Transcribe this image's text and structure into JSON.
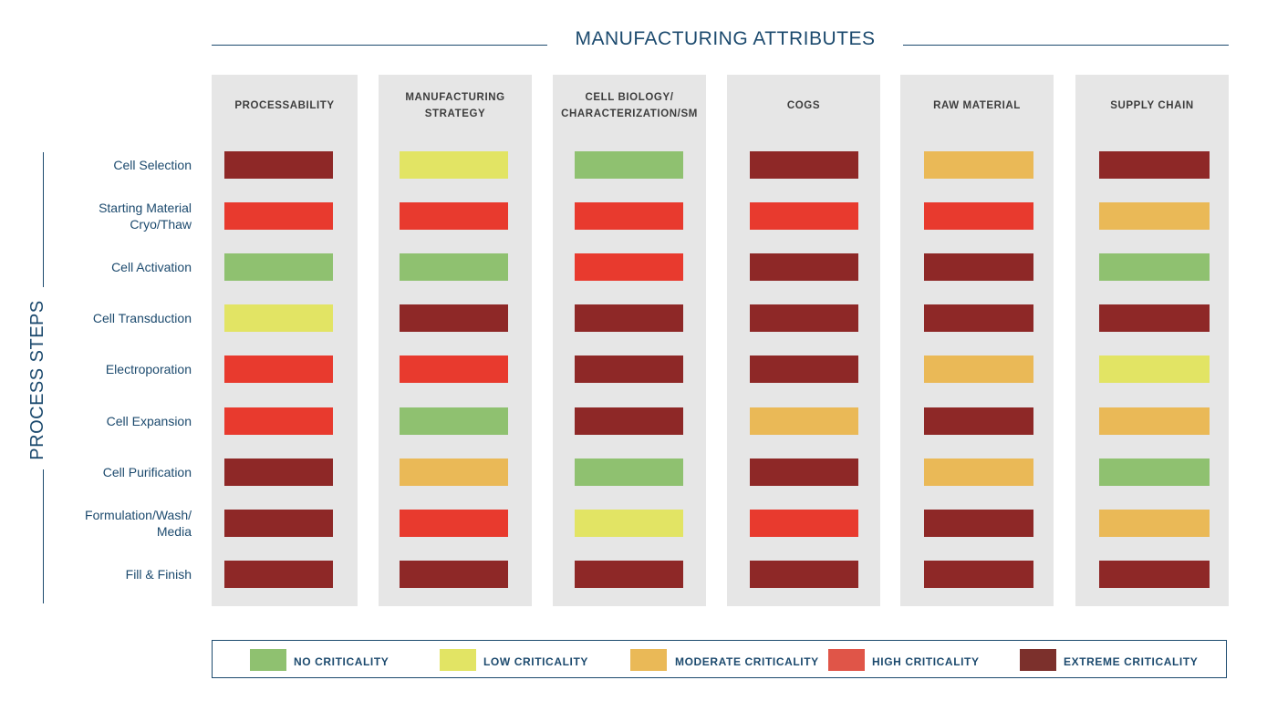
{
  "title": "MANUFACTURING ATTRIBUTES",
  "side_title": "PROCESS STEPS",
  "colors": {
    "no": "#8fc170",
    "low": "#e2e464",
    "moderate": "#eab957",
    "high": "#e83a2e",
    "extreme": "#8e2827",
    "legend_extreme": "#7c302c",
    "legend_high": "#e05548",
    "panel": "#e6e6e6",
    "text": "#1c4a6e"
  },
  "legend": [
    {
      "key": "no",
      "label": "NO CRITICALITY"
    },
    {
      "key": "low",
      "label": "LOW CRITICALITY"
    },
    {
      "key": "moderate",
      "label": "MODERATE CRITICALITY"
    },
    {
      "key": "high",
      "label": "HIGH CRITICALITY"
    },
    {
      "key": "extreme",
      "label": "EXTREME CRITICALITY"
    }
  ],
  "chart_data": {
    "type": "heatmap",
    "title": "MANUFACTURING ATTRIBUTES",
    "ylabel": "PROCESS STEPS",
    "columns": [
      "PROCESSABILITY",
      "MANUFACTURING\nSTRATEGY",
      "CELL BIOLOGY/\nCHARACTERIZATION/SM",
      "COGS",
      "RAW MATERIAL",
      "SUPPLY CHAIN"
    ],
    "rows": [
      "Cell Selection",
      "Starting Material\nCryo/Thaw",
      "Cell Activation",
      "Cell Transduction",
      "Electroporation",
      "Cell Expansion",
      "Cell Purification",
      "Formulation/Wash/\nMedia",
      "Fill & Finish"
    ],
    "values": [
      [
        "extreme",
        "low",
        "no",
        "extreme",
        "moderate",
        "extreme"
      ],
      [
        "high",
        "high",
        "high",
        "high",
        "high",
        "moderate"
      ],
      [
        "no",
        "no",
        "high",
        "extreme",
        "extreme",
        "no"
      ],
      [
        "low",
        "extreme",
        "extreme",
        "extreme",
        "extreme",
        "extreme"
      ],
      [
        "high",
        "high",
        "extreme",
        "extreme",
        "moderate",
        "low"
      ],
      [
        "high",
        "no",
        "extreme",
        "moderate",
        "extreme",
        "moderate"
      ],
      [
        "extreme",
        "moderate",
        "no",
        "extreme",
        "moderate",
        "no"
      ],
      [
        "extreme",
        "high",
        "low",
        "high",
        "extreme",
        "moderate"
      ],
      [
        "extreme",
        "extreme",
        "extreme",
        "extreme",
        "extreme",
        "extreme"
      ]
    ]
  }
}
